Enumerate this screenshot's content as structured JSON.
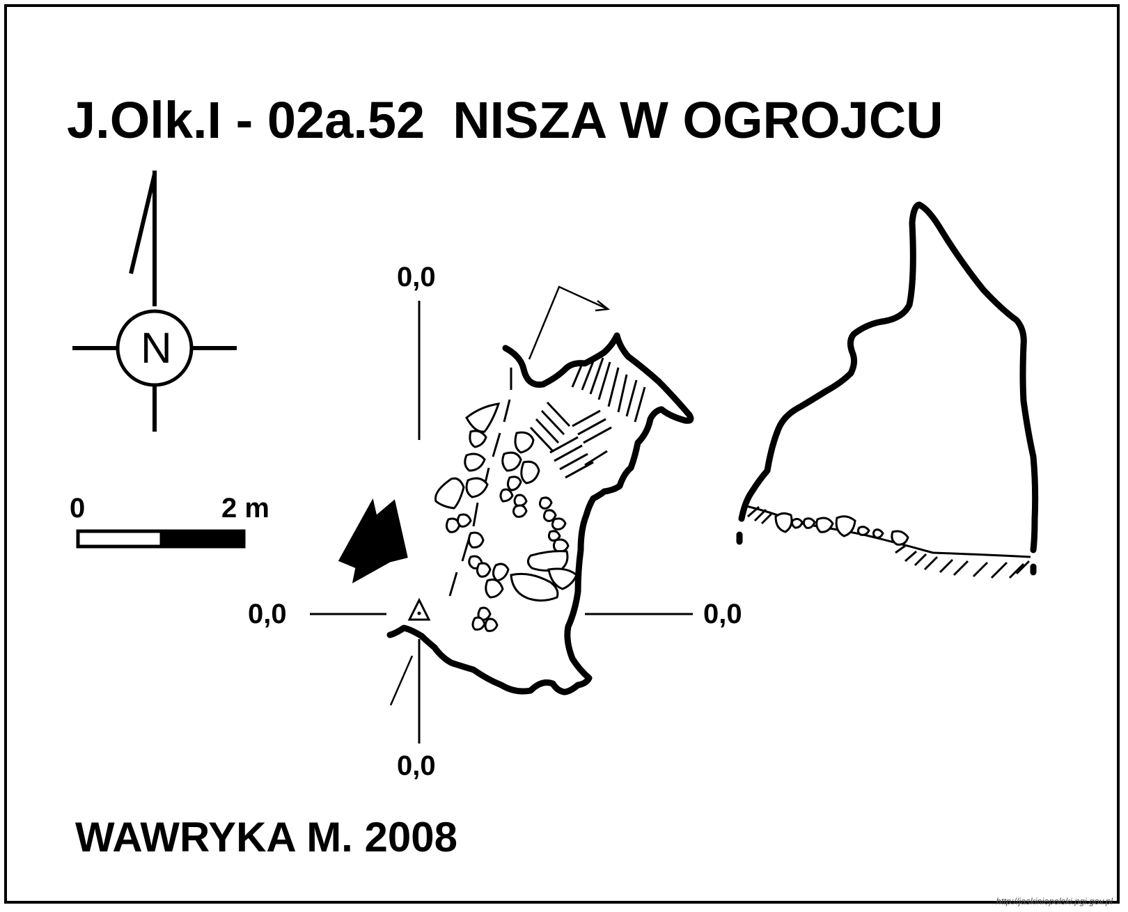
{
  "title": {
    "code": "J.Olk.I - 02a.52",
    "name": "NISZA W OGROJCU"
  },
  "author": "WAWRYKA M. 2008",
  "compass": {
    "letter": "N"
  },
  "scale": {
    "start_label": "0",
    "end_label": "2 m"
  },
  "datum_labels": {
    "top": "0,0",
    "left": "0,0",
    "right": "0,0",
    "bottom": "0,0"
  },
  "source_url": "http://jaskiniepolski.pgi.gov.pl",
  "colors": {
    "ink": "#000000",
    "paper": "#ffffff"
  }
}
